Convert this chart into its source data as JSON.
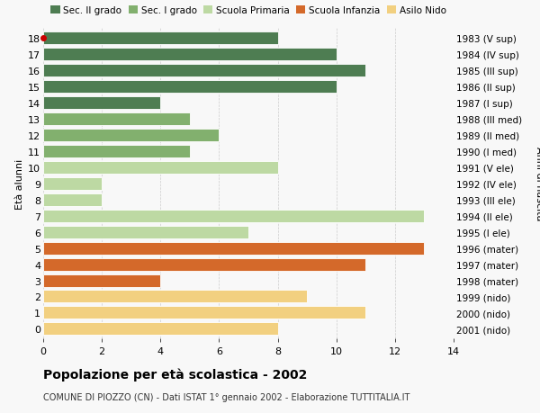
{
  "ages": [
    18,
    17,
    16,
    15,
    14,
    13,
    12,
    11,
    10,
    9,
    8,
    7,
    6,
    5,
    4,
    3,
    2,
    1,
    0
  ],
  "years": [
    "1983 (V sup)",
    "1984 (IV sup)",
    "1985 (III sup)",
    "1986 (II sup)",
    "1987 (I sup)",
    "1988 (III med)",
    "1989 (II med)",
    "1990 (I med)",
    "1991 (V ele)",
    "1992 (IV ele)",
    "1993 (III ele)",
    "1994 (II ele)",
    "1995 (I ele)",
    "1996 (mater)",
    "1997 (mater)",
    "1998 (mater)",
    "1999 (nido)",
    "2000 (nido)",
    "2001 (nido)"
  ],
  "values": [
    8,
    10,
    11,
    10,
    4,
    5,
    6,
    5,
    8,
    2,
    2,
    13,
    7,
    13,
    11,
    4,
    9,
    11,
    8
  ],
  "categories": [
    "Sec. II grado",
    "Sec. II grado",
    "Sec. II grado",
    "Sec. II grado",
    "Sec. II grado",
    "Sec. I grado",
    "Sec. I grado",
    "Sec. I grado",
    "Scuola Primaria",
    "Scuola Primaria",
    "Scuola Primaria",
    "Scuola Primaria",
    "Scuola Primaria",
    "Scuola Infanzia",
    "Scuola Infanzia",
    "Scuola Infanzia",
    "Asilo Nido",
    "Asilo Nido",
    "Asilo Nido"
  ],
  "colors": {
    "Sec. II grado": "#4e7d52",
    "Sec. I grado": "#82b06e",
    "Scuola Primaria": "#bdd9a3",
    "Scuola Infanzia": "#d4692a",
    "Asilo Nido": "#f2d080"
  },
  "title": "Popolazione per età scolastica - 2002",
  "subtitle": "COMUNE DI PIOZZO (CN) - Dati ISTAT 1° gennaio 2002 - Elaborazione TUTTITALIA.IT",
  "ylabel_left": "Età alunni",
  "ylabel_right": "Anni di nascita",
  "xlim": [
    0,
    14
  ],
  "xticks": [
    0,
    2,
    4,
    6,
    8,
    10,
    12,
    14
  ],
  "background_color": "#f8f8f8",
  "grid_color": "#cccccc",
  "bar_edge_color": "#ffffff",
  "age18_dot_color": "#cc0000",
  "bar_height": 0.78
}
